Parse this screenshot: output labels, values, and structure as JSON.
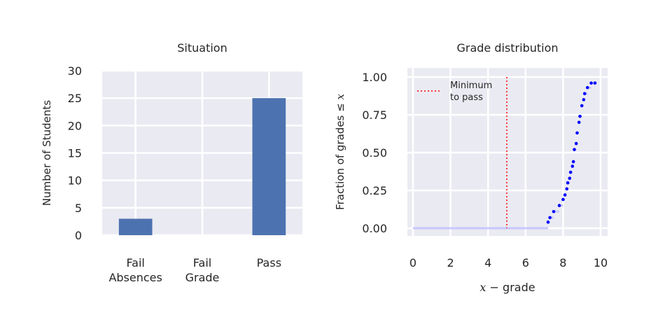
{
  "chart_data": [
    {
      "type": "bar",
      "title": "Situation",
      "xlabel": "",
      "ylabel": "Number of Students",
      "categories": [
        [
          "Fail",
          "Absences"
        ],
        [
          "Fail",
          "Grade"
        ],
        [
          "Pass"
        ]
      ],
      "values": [
        3,
        0,
        25
      ],
      "ylim": [
        0,
        30
      ],
      "yticks": [
        "0",
        "5",
        "10",
        "15",
        "20",
        "25",
        "30"
      ],
      "grid": true,
      "bar_color": "#4c72b0"
    },
    {
      "type": "line",
      "title": "Grade distribution",
      "xlabel_math": "x",
      "xlabel_text": " − grade",
      "ylabel_text": "Fraction of grades ≤ ",
      "ylabel_math": "x",
      "xlim": [
        0,
        10
      ],
      "ylim": [
        0,
        1
      ],
      "xticks": [
        "0",
        "2",
        "4",
        "6",
        "8",
        "10"
      ],
      "yticks": [
        "0.00",
        "0.25",
        "0.50",
        "0.75",
        "1.00"
      ],
      "grid": true,
      "threshold": {
        "x": 5,
        "label": [
          "Minimum",
          "to pass"
        ],
        "color": "#ff0000"
      },
      "legend_position": "top-left",
      "step_color": "#c8c8ff",
      "point_color": "#0000ff",
      "cdf_points": [
        {
          "x": 0.0,
          "y": 0.0
        },
        {
          "x": 7.2,
          "y": 0.0
        },
        {
          "x": 7.2,
          "y": 0.04
        },
        {
          "x": 7.3,
          "y": 0.07
        },
        {
          "x": 7.5,
          "y": 0.11
        },
        {
          "x": 7.8,
          "y": 0.15
        },
        {
          "x": 8.0,
          "y": 0.19
        },
        {
          "x": 8.1,
          "y": 0.22
        },
        {
          "x": 8.2,
          "y": 0.26
        },
        {
          "x": 8.25,
          "y": 0.3
        },
        {
          "x": 8.35,
          "y": 0.33
        },
        {
          "x": 8.4,
          "y": 0.37
        },
        {
          "x": 8.5,
          "y": 0.41
        },
        {
          "x": 8.55,
          "y": 0.44
        },
        {
          "x": 8.6,
          "y": 0.52
        },
        {
          "x": 8.7,
          "y": 0.56
        },
        {
          "x": 8.75,
          "y": 0.63
        },
        {
          "x": 8.85,
          "y": 0.7
        },
        {
          "x": 8.9,
          "y": 0.74
        },
        {
          "x": 9.0,
          "y": 0.81
        },
        {
          "x": 9.1,
          "y": 0.85
        },
        {
          "x": 9.15,
          "y": 0.89
        },
        {
          "x": 9.3,
          "y": 0.93
        },
        {
          "x": 9.5,
          "y": 0.96
        },
        {
          "x": 9.7,
          "y": 0.96
        }
      ]
    }
  ]
}
